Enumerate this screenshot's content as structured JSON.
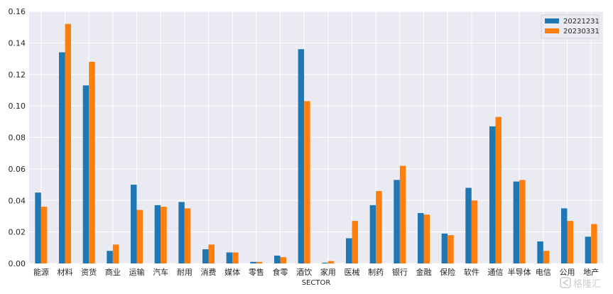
{
  "chart_data": {
    "type": "bar",
    "title": "",
    "xlabel": "SECTOR",
    "ylabel": "",
    "ylim": [
      0,
      0.16
    ],
    "yticks": [
      "0.00",
      "0.02",
      "0.04",
      "0.06",
      "0.08",
      "0.10",
      "0.12",
      "0.14",
      "0.16"
    ],
    "grid": true,
    "legend_position": "top-right",
    "categories": [
      "能源",
      "材料",
      "资货",
      "商业",
      "运输",
      "汽车",
      "耐用",
      "消费",
      "媒体",
      "零售",
      "食零",
      "酒饮",
      "家用",
      "医械",
      "制药",
      "银行",
      "金融",
      "保险",
      "软件",
      "通信",
      "半导体",
      "电信",
      "公用",
      "地产"
    ],
    "series": [
      {
        "name": "20221231",
        "color": "#1f77b4",
        "values": [
          0.045,
          0.134,
          0.113,
          0.008,
          0.05,
          0.037,
          0.039,
          0.009,
          0.007,
          0.001,
          0.005,
          0.136,
          0.0005,
          0.016,
          0.037,
          0.053,
          0.032,
          0.019,
          0.048,
          0.087,
          0.052,
          0.014,
          0.035,
          0.017
        ]
      },
      {
        "name": "20230331",
        "color": "#ff7f0e",
        "values": [
          0.036,
          0.152,
          0.128,
          0.012,
          0.034,
          0.036,
          0.035,
          0.012,
          0.007,
          0.001,
          0.004,
          0.103,
          0.0015,
          0.027,
          0.046,
          0.062,
          0.031,
          0.018,
          0.04,
          0.093,
          0.053,
          0.008,
          0.027,
          0.025
        ]
      }
    ]
  },
  "watermark": {
    "text": "格隆汇",
    "icon": "ghx-logo-icon"
  },
  "colors": {
    "plot_background": "#eaeaf2",
    "grid": "#ffffff"
  }
}
